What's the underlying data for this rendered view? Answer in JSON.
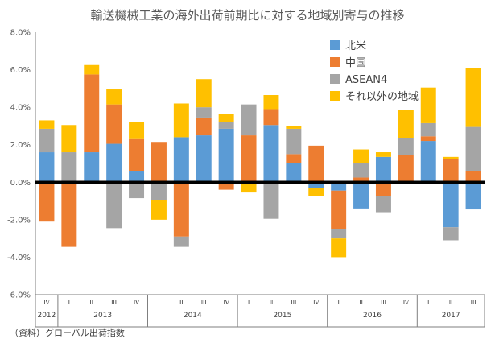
{
  "title": "輸送機械工業の海外出荷前期比に対する地域別寄与の推移",
  "source": "（資料）グローバル出荷指数",
  "chart_data": {
    "type": "bar",
    "stacked": true,
    "title": "輸送機械工業の海外出荷前期比に対する地域別寄与の推移",
    "xlabel": "",
    "ylabel": "",
    "ylim": [
      -6.0,
      8.0
    ],
    "yticks": [
      "8.0%",
      "6.0%",
      "4.0%",
      "2.0%",
      "0.0%",
      "-2.0%",
      "-4.0%",
      "-6.0%"
    ],
    "grid": false,
    "legend_position": "top-right",
    "categories": [
      "Ⅳ",
      "Ⅰ",
      "Ⅱ",
      "Ⅲ",
      "Ⅳ",
      "Ⅰ",
      "Ⅱ",
      "Ⅲ",
      "Ⅳ",
      "Ⅰ",
      "Ⅱ",
      "Ⅲ",
      "Ⅳ",
      "Ⅰ",
      "Ⅱ",
      "Ⅲ",
      "Ⅳ",
      "Ⅰ",
      "Ⅱ",
      "Ⅲ"
    ],
    "years": [
      {
        "label": "2012",
        "span": 1
      },
      {
        "label": "2013",
        "span": 4
      },
      {
        "label": "2014",
        "span": 4
      },
      {
        "label": "2015",
        "span": 4
      },
      {
        "label": "2016",
        "span": 4
      },
      {
        "label": "2017",
        "span": 3
      }
    ],
    "series": [
      {
        "name": "北米",
        "color": "#5B9BD5",
        "values": [
          1.6,
          0.0,
          1.6,
          2.05,
          0.6,
          0.0,
          2.4,
          2.5,
          2.85,
          0.0,
          3.05,
          1.0,
          -0.3,
          -0.45,
          -1.4,
          1.35,
          0.05,
          2.2,
          -2.4,
          -1.45
        ]
      },
      {
        "name": "中国",
        "color": "#ED7D31",
        "values": [
          -2.1,
          -3.45,
          4.15,
          2.1,
          1.7,
          2.15,
          -2.9,
          0.95,
          -0.4,
          2.5,
          0.85,
          0.5,
          1.95,
          -2.05,
          0.25,
          -0.75,
          1.4,
          0.25,
          1.25,
          0.6
        ]
      },
      {
        "name": "ASEAN4",
        "color": "#A5A5A5",
        "values": [
          1.25,
          1.6,
          0.0,
          -2.45,
          -0.85,
          -0.95,
          -0.55,
          0.55,
          0.35,
          1.65,
          -1.95,
          1.35,
          0.0,
          -0.5,
          0.75,
          -0.85,
          0.9,
          0.7,
          -0.7,
          2.35
        ]
      },
      {
        "name": "それ以外の地域",
        "color": "#FFC000",
        "values": [
          0.45,
          1.45,
          0.5,
          0.8,
          0.9,
          -1.05,
          1.8,
          1.5,
          0.45,
          -0.55,
          0.75,
          0.15,
          -0.45,
          -1.0,
          0.75,
          0.25,
          1.5,
          1.9,
          0.1,
          3.15
        ]
      }
    ]
  }
}
